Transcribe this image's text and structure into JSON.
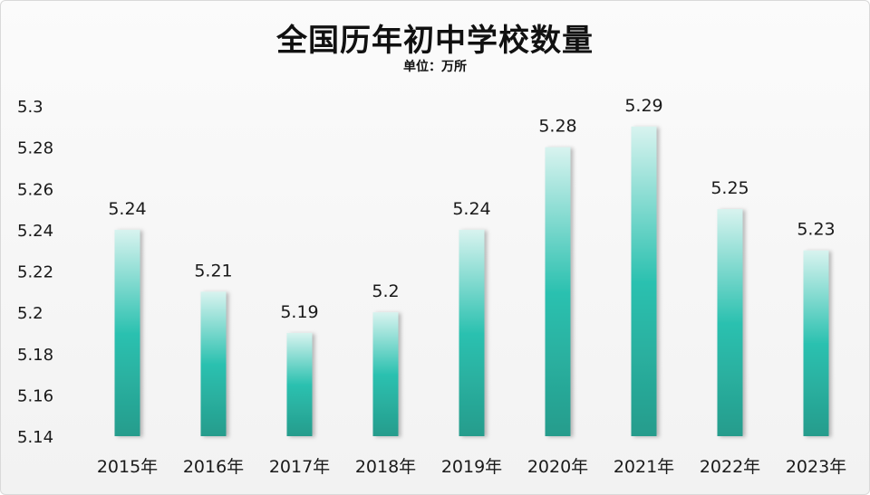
{
  "chart_data": {
    "type": "bar",
    "title": "全国历年初中学校数量",
    "subtitle": "单位：万所",
    "categories": [
      "2015年",
      "2016年",
      "2017年",
      "2018年",
      "2019年",
      "2020年",
      "2021年",
      "2022年",
      "2023年"
    ],
    "values": [
      5.24,
      5.21,
      5.19,
      5.2,
      5.24,
      5.28,
      5.29,
      5.25,
      5.23
    ],
    "data_labels": [
      "5.24",
      "5.21",
      "5.19",
      "5.2",
      "5.24",
      "5.28",
      "5.29",
      "5.25",
      "5.23"
    ],
    "ylim": [
      5.14,
      5.3
    ],
    "y_ticks": [
      5.14,
      5.16,
      5.18,
      5.2,
      5.22,
      5.24,
      5.26,
      5.28,
      5.3
    ],
    "y_tick_labels": [
      "5.14",
      "5.16",
      "5.18",
      "5.2",
      "5.22",
      "5.24",
      "5.26",
      "5.28",
      "5.3"
    ],
    "grid": false,
    "legend": "none",
    "colors": {
      "bar_top": "#d8f3ef",
      "bar_mid": "#2cc1b0",
      "bar_bottom": "#269c8c",
      "text": "#1a1a1a"
    }
  }
}
